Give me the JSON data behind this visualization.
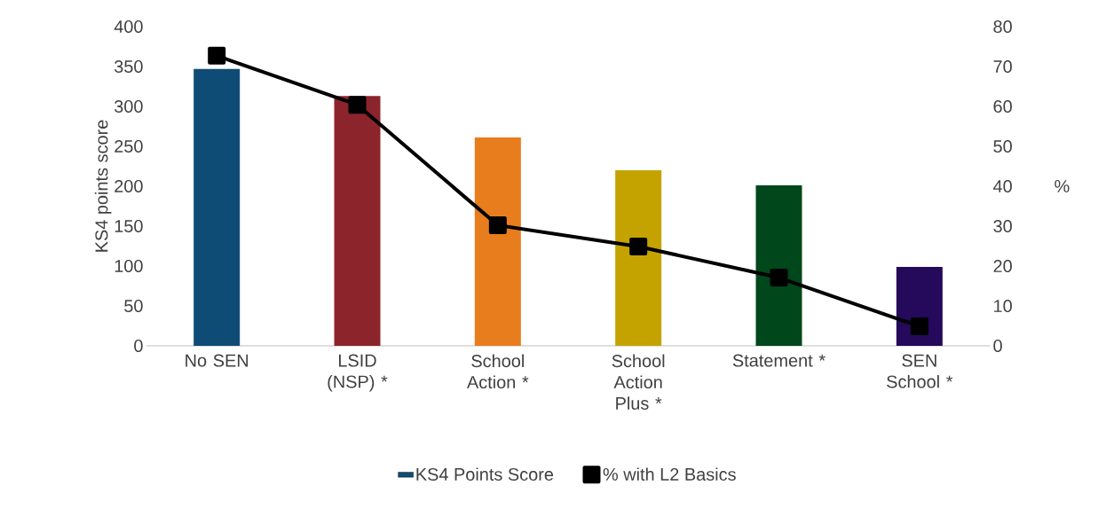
{
  "chart_data": {
    "type": "bar",
    "ylabel": "KS4 points score",
    "y2label": "%",
    "legend": "bottom",
    "categories": [
      "No SEN",
      "LSID (NSP) *",
      "School Action *",
      "School Action Plus *",
      "Statement *",
      "SEN School *"
    ],
    "ylim": [
      0,
      400
    ],
    "yticks": [
      0,
      50,
      100,
      150,
      200,
      250,
      300,
      350,
      400
    ],
    "y2lim": [
      0,
      80
    ],
    "y2ticks": [
      0,
      10,
      20,
      30,
      40,
      50,
      60,
      70,
      80
    ],
    "series": [
      {
        "name": "KS4 Points Score",
        "colors": [
          "#0f4c75",
          "#8b252b",
          "#e87d1e",
          "#c4a300",
          "#00471b",
          "#25095a"
        ],
        "values": [
          347,
          313,
          261,
          220,
          201,
          99
        ]
      },
      {
        "name": "% with L2 Basics",
        "type": "line",
        "axis": "y2",
        "color": "#000000",
        "marker": "square",
        "values": [
          72.7,
          60.4,
          30.2,
          24.9,
          17.1,
          4.9
        ]
      }
    ]
  }
}
